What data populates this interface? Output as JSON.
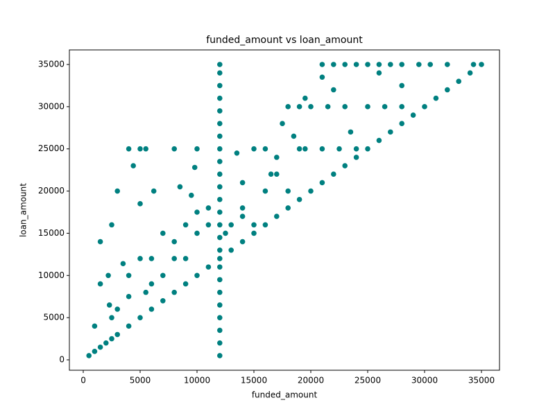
{
  "chart_data": {
    "type": "scatter",
    "title": "funded_amount vs loan_amount",
    "x_label": "funded_amount",
    "y_label": "loan_amount",
    "color": "#008080",
    "grid": false,
    "xlim": [
      -1220,
      36585
    ],
    "ylim": [
      -1232,
      36725
    ],
    "xticks": [
      0,
      5000,
      10000,
      15000,
      20000,
      25000,
      30000,
      35000
    ],
    "yticks": [
      0,
      5000,
      10000,
      15000,
      20000,
      25000,
      30000,
      35000
    ],
    "x": [
      500,
      1000,
      1500,
      2000,
      2500,
      3000,
      4000,
      5000,
      6000,
      7000,
      8000,
      9000,
      10000,
      11000,
      12000,
      13000,
      14000,
      15000,
      16000,
      17000,
      18000,
      19000,
      20000,
      21000,
      22000,
      23000,
      24000,
      25000,
      26000,
      27000,
      28000,
      29000,
      30000,
      31000,
      32000,
      33000,
      34000,
      35000,
      12000,
      12000,
      12000,
      12000,
      12000,
      12000,
      12000,
      12000,
      12000,
      12000,
      12000,
      12000,
      12000,
      12000,
      12000,
      12000,
      12000,
      12000,
      12000,
      12000,
      12000,
      12000,
      12000,
      12000,
      21000,
      22000,
      23000,
      24000,
      25000,
      26000,
      27000,
      28000,
      29500,
      30500,
      32000,
      34300,
      4000,
      5000,
      5500,
      8000,
      10000,
      4400,
      3000,
      6200,
      2500,
      1500,
      5000,
      8500,
      9500,
      9800,
      3500,
      2200,
      1500,
      1000,
      2300,
      4000,
      5000,
      6000,
      7000,
      8000,
      9000,
      10000,
      11000,
      13500,
      14000,
      15000,
      16000,
      17000,
      18000,
      19000,
      20000,
      17500,
      21000,
      22000,
      23000,
      24000,
      25000,
      26000,
      28000,
      28000,
      19000,
      21000,
      22500,
      16000,
      18000,
      14000,
      13000,
      15000,
      16500,
      19500,
      6000,
      7000,
      3000,
      4000,
      5500,
      2500,
      8000,
      9000,
      10000,
      11000,
      12500,
      14000,
      17000,
      18500,
      19500,
      21500,
      23500,
      26500
    ],
    "y": [
      500,
      1000,
      1500,
      2000,
      2500,
      3000,
      4000,
      5000,
      6000,
      7000,
      8000,
      9000,
      10000,
      11000,
      12000,
      13000,
      14000,
      15000,
      16000,
      17000,
      18000,
      19000,
      20000,
      21000,
      22000,
      23000,
      24000,
      25000,
      26000,
      27000,
      28000,
      29000,
      30000,
      31000,
      32000,
      33000,
      34000,
      35000,
      500,
      2000,
      3500,
      5000,
      6500,
      8000,
      9500,
      11000,
      13000,
      14500,
      16000,
      17500,
      19000,
      20500,
      22000,
      23500,
      25000,
      26500,
      28000,
      29500,
      31000,
      32500,
      34000,
      35000,
      35000,
      35000,
      35000,
      35000,
      35000,
      35000,
      35000,
      35000,
      35000,
      35000,
      35000,
      35000,
      25000,
      25000,
      25000,
      25000,
      25000,
      23000,
      20000,
      20000,
      16000,
      14000,
      18500,
      20500,
      19500,
      22800,
      11400,
      10000,
      9000,
      4000,
      6500,
      10000,
      12000,
      12000,
      15000,
      14000,
      16000,
      17500,
      18000,
      24500,
      21000,
      25000,
      25000,
      24000,
      30000,
      30000,
      30000,
      28000,
      33500,
      32000,
      30000,
      25000,
      30000,
      34000,
      32500,
      30000,
      25000,
      25000,
      25000,
      20000,
      20000,
      18000,
      16000,
      16000,
      22000,
      25000,
      9000,
      10000,
      6000,
      7500,
      8000,
      5000,
      12000,
      12000,
      15000,
      16000,
      15000,
      17000,
      22000,
      26500,
      31000,
      30000,
      27000,
      30000
    ]
  }
}
